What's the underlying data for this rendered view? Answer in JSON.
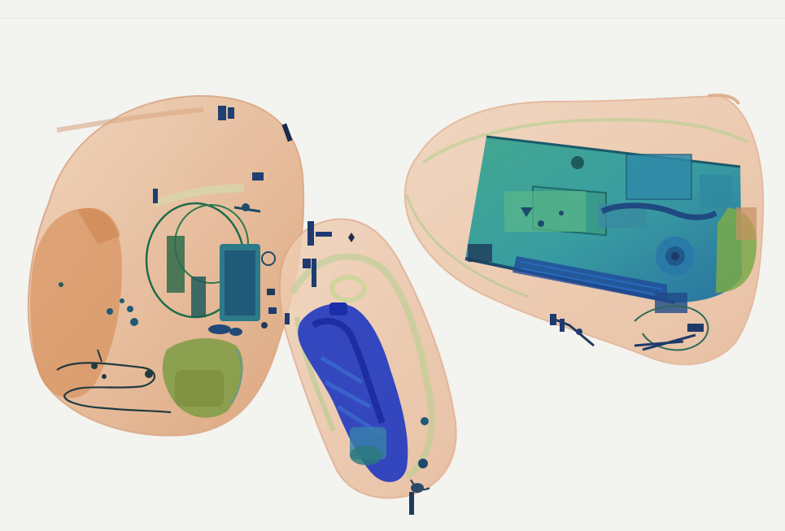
{
  "scene": {
    "description_visible_text": "",
    "colors": {
      "background": "#f3f3ef",
      "organic_orange": "#d9a27a",
      "organic_light": "#ecc8aa",
      "mixed_green": "#7fbf6a",
      "metal_blue": "#1f3fb8",
      "dense_teal": "#1f8a8a",
      "dark_wire": "#1a3a3a"
    },
    "icons": [
      "bag-left-scan",
      "bag-middle-scan",
      "bag-right-scan",
      "laptop-scan"
    ]
  }
}
